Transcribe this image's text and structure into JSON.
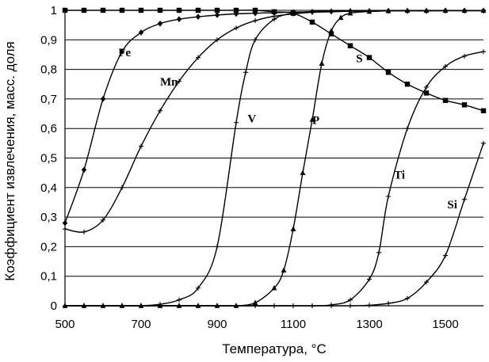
{
  "chart_data": {
    "type": "line",
    "xlabel": "Температура, °C",
    "ylabel": "Коэффициент извлечения, масс. доля",
    "xlim": [
      500,
      1600
    ],
    "ylim": [
      0,
      1
    ],
    "xticks": [
      "500",
      "700",
      "900",
      "1100",
      "1300",
      "1500"
    ],
    "yticks": [
      "0",
      "0,1",
      "0,2",
      "0,3",
      "0,4",
      "0,5",
      "0,6",
      "0,7",
      "0,8",
      "0,9",
      "1"
    ],
    "grid": "horizontal",
    "series": [
      {
        "name": "Fe",
        "label_at": [
          640,
          0.845
        ],
        "marker": "diamond",
        "x": [
          500,
          550,
          600,
          650,
          700,
          750,
          800,
          850,
          900,
          950,
          1000,
          1050,
          1100,
          1150,
          1200,
          1250,
          1300,
          1350,
          1400,
          1450,
          1500,
          1550,
          1600
        ],
        "y": [
          0.28,
          0.46,
          0.7,
          0.86,
          0.925,
          0.955,
          0.97,
          0.978,
          0.984,
          0.988,
          0.99,
          0.992,
          0.994,
          0.995,
          0.996,
          0.997,
          0.997,
          0.998,
          0.998,
          0.998,
          0.999,
          0.999,
          0.999
        ]
      },
      {
        "name": "Mn",
        "label_at": [
          750,
          0.745
        ],
        "marker": "cross",
        "x": [
          500,
          550,
          600,
          650,
          700,
          750,
          800,
          850,
          900,
          950,
          1000,
          1050,
          1100,
          1150,
          1200,
          1250,
          1300,
          1350,
          1400,
          1450,
          1500,
          1550,
          1600
        ],
        "y": [
          0.26,
          0.25,
          0.29,
          0.4,
          0.54,
          0.66,
          0.76,
          0.84,
          0.9,
          0.94,
          0.965,
          0.98,
          0.988,
          0.993,
          0.995,
          0.997,
          0.998,
          0.998,
          0.999,
          0.999,
          0.999,
          0.999,
          0.999
        ]
      },
      {
        "name": "V",
        "label_at": [
          980,
          0.62
        ],
        "marker": "cross",
        "x": [
          500,
          550,
          600,
          650,
          700,
          750,
          800,
          850,
          900,
          950,
          975,
          1000,
          1050,
          1100,
          1150,
          1200,
          1250,
          1300,
          1350,
          1400,
          1450,
          1500,
          1550,
          1600
        ],
        "y": [
          0,
          0,
          0,
          0,
          0,
          0.005,
          0.02,
          0.06,
          0.2,
          0.62,
          0.79,
          0.9,
          0.97,
          0.99,
          0.996,
          0.998,
          0.999,
          0.999,
          0.999,
          0.999,
          0.999,
          0.999,
          0.999,
          0.999
        ]
      },
      {
        "name": "P",
        "label_at": [
          1150,
          0.615
        ],
        "marker": "triangle",
        "x": [
          500,
          550,
          600,
          650,
          700,
          750,
          800,
          850,
          900,
          950,
          1000,
          1050,
          1075,
          1100,
          1125,
          1150,
          1175,
          1200,
          1225,
          1250,
          1300,
          1350,
          1400,
          1450,
          1500,
          1550,
          1600
        ],
        "y": [
          0,
          0,
          0,
          0,
          0,
          0,
          0,
          0,
          0,
          0,
          0.01,
          0.06,
          0.12,
          0.26,
          0.45,
          0.63,
          0.82,
          0.93,
          0.975,
          0.99,
          0.996,
          0.998,
          0.999,
          0.999,
          0.999,
          0.999,
          0.999
        ]
      },
      {
        "name": "S",
        "label_at": [
          1265,
          0.825
        ],
        "marker": "square",
        "x": [
          500,
          550,
          600,
          650,
          700,
          750,
          800,
          850,
          900,
          950,
          1000,
          1050,
          1100,
          1150,
          1200,
          1250,
          1300,
          1350,
          1400,
          1450,
          1500,
          1550,
          1600
        ],
        "y": [
          1,
          1,
          1,
          1,
          1,
          1,
          1,
          1,
          1,
          1,
          1,
          0.995,
          0.99,
          0.96,
          0.92,
          0.88,
          0.84,
          0.79,
          0.75,
          0.72,
          0.695,
          0.68,
          0.66
        ]
      },
      {
        "name": "Ti",
        "label_at": [
          1365,
          0.43
        ],
        "marker": "cross",
        "x": [
          500,
          550,
          600,
          650,
          700,
          750,
          800,
          850,
          900,
          950,
          1000,
          1050,
          1100,
          1150,
          1200,
          1250,
          1300,
          1325,
          1350,
          1400,
          1450,
          1500,
          1550,
          1600
        ],
        "y": [
          0,
          0,
          0,
          0,
          0,
          0,
          0,
          0,
          0,
          0,
          0,
          0,
          0,
          0,
          0.003,
          0.02,
          0.09,
          0.18,
          0.37,
          0.6,
          0.74,
          0.81,
          0.845,
          0.86
        ]
      },
      {
        "name": "Si",
        "label_at": [
          1505,
          0.33
        ],
        "marker": "cross",
        "x": [
          500,
          550,
          600,
          650,
          700,
          750,
          800,
          850,
          900,
          950,
          1000,
          1050,
          1100,
          1150,
          1200,
          1250,
          1300,
          1350,
          1400,
          1450,
          1500,
          1550,
          1600
        ],
        "y": [
          0,
          0,
          0,
          0,
          0,
          0,
          0,
          0,
          0,
          0,
          0,
          0,
          0,
          0,
          0,
          0,
          0.002,
          0.008,
          0.025,
          0.08,
          0.17,
          0.36,
          0.55
        ]
      }
    ]
  }
}
